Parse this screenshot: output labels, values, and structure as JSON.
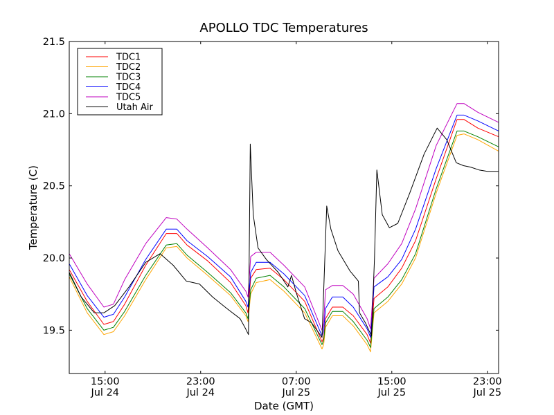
{
  "chart_data": {
    "type": "line",
    "title": "APOLLO TDC Temperatures",
    "xlabel": "Date (GMT)",
    "ylabel": "Temperature (C)",
    "x_unit": "hours since Jul 24 00:00 GMT",
    "xlim": [
      12.0,
      47.94
    ],
    "ylim": [
      19.2,
      21.5
    ],
    "grid": false,
    "legend_position": "top-left",
    "x_ticks": [
      {
        "value": 15,
        "label_time": "15:00",
        "label_date": "Jul 24"
      },
      {
        "value": 23,
        "label_time": "23:00",
        "label_date": "Jul 24"
      },
      {
        "value": 31,
        "label_time": "07:00",
        "label_date": "Jul 25"
      },
      {
        "value": 39,
        "label_time": "15:00",
        "label_date": "Jul 25"
      },
      {
        "value": 47,
        "label_time": "23:00",
        "label_date": "Jul 25"
      }
    ],
    "y_ticks": [
      {
        "value": 19.5,
        "label": "19.5"
      },
      {
        "value": 20.0,
        "label": "20.0"
      },
      {
        "value": 20.5,
        "label": "20.5"
      },
      {
        "value": 21.0,
        "label": "21.0"
      },
      {
        "value": 21.5,
        "label": "21.5"
      }
    ],
    "series": [
      {
        "name": "TDC1",
        "color": "#ff0000",
        "x": [
          12.0,
          13.5,
          14.9,
          15.7,
          16.64,
          18.4,
          20.12,
          21.0,
          21.86,
          23.59,
          25.5,
          26.78,
          26.96,
          27.19,
          27.65,
          28.81,
          29.97,
          31.71,
          33.16,
          33.3,
          33.45,
          34.03,
          34.9,
          35.77,
          36.93,
          37.22,
          37.51,
          38.67,
          39.83,
          40.99,
          42.72,
          44.46,
          45.04,
          46.2,
          47.94
        ],
        "y": [
          19.92,
          19.7,
          19.54,
          19.56,
          19.68,
          19.95,
          20.17,
          20.17,
          20.09,
          19.98,
          19.83,
          19.67,
          19.62,
          19.86,
          19.92,
          19.93,
          19.85,
          19.7,
          19.42,
          19.45,
          19.58,
          19.66,
          19.66,
          19.6,
          19.47,
          19.41,
          19.72,
          19.8,
          19.93,
          20.12,
          20.55,
          20.96,
          20.96,
          20.9,
          20.84
        ]
      },
      {
        "name": "TDC2",
        "color": "#ffa500",
        "x": [
          12.0,
          13.5,
          14.9,
          15.7,
          16.64,
          18.4,
          20.12,
          21.0,
          21.86,
          23.59,
          25.5,
          26.78,
          26.96,
          27.19,
          27.65,
          28.81,
          29.97,
          31.71,
          33.16,
          33.3,
          33.45,
          34.03,
          34.9,
          35.77,
          36.93,
          37.22,
          37.51,
          38.67,
          39.83,
          40.99,
          42.72,
          44.46,
          45.04,
          46.2,
          47.94
        ],
        "y": [
          19.87,
          19.62,
          19.47,
          19.49,
          19.6,
          19.85,
          20.07,
          20.08,
          20.0,
          19.88,
          19.74,
          19.6,
          19.56,
          19.75,
          19.83,
          19.85,
          19.77,
          19.62,
          19.37,
          19.4,
          19.52,
          19.6,
          19.6,
          19.53,
          19.4,
          19.35,
          19.62,
          19.7,
          19.82,
          20.0,
          20.45,
          20.85,
          20.86,
          20.82,
          20.74
        ]
      },
      {
        "name": "TDC3",
        "color": "#008000",
        "x": [
          12.0,
          13.5,
          14.9,
          15.7,
          16.64,
          18.4,
          20.12,
          21.0,
          21.86,
          23.59,
          25.5,
          26.78,
          26.96,
          27.19,
          27.65,
          28.81,
          29.97,
          31.71,
          33.16,
          33.3,
          33.45,
          34.03,
          34.9,
          35.77,
          36.93,
          37.22,
          37.51,
          38.67,
          39.83,
          40.99,
          42.72,
          44.46,
          45.04,
          46.2,
          47.94
        ],
        "y": [
          19.89,
          19.65,
          19.5,
          19.52,
          19.63,
          19.88,
          20.09,
          20.1,
          20.02,
          19.9,
          19.76,
          19.62,
          19.58,
          19.78,
          19.86,
          19.88,
          19.8,
          19.65,
          19.4,
          19.43,
          19.55,
          19.63,
          19.63,
          19.56,
          19.43,
          19.38,
          19.65,
          19.73,
          19.85,
          20.03,
          20.48,
          20.88,
          20.88,
          20.84,
          20.77
        ]
      },
      {
        "name": "TDC4",
        "color": "#0000ff",
        "x": [
          12.0,
          13.5,
          14.9,
          15.7,
          16.64,
          18.4,
          20.12,
          21.0,
          21.86,
          23.59,
          25.5,
          26.78,
          26.96,
          27.19,
          27.65,
          28.81,
          29.97,
          31.71,
          33.16,
          33.3,
          33.45,
          34.03,
          34.9,
          35.77,
          36.93,
          37.22,
          37.51,
          38.67,
          39.83,
          40.99,
          42.72,
          44.46,
          45.04,
          46.2,
          47.94
        ],
        "y": [
          19.96,
          19.74,
          19.59,
          19.61,
          19.73,
          19.99,
          20.2,
          20.2,
          20.12,
          20.01,
          19.87,
          19.7,
          19.66,
          19.9,
          19.97,
          19.97,
          19.89,
          19.74,
          19.46,
          19.5,
          19.65,
          19.73,
          19.73,
          19.66,
          19.51,
          19.45,
          19.8,
          19.87,
          19.99,
          20.2,
          20.62,
          20.99,
          20.99,
          20.95,
          20.88
        ]
      },
      {
        "name": "TDC5",
        "color": "#bf00bf",
        "x": [
          12.0,
          13.5,
          14.9,
          15.7,
          16.64,
          18.4,
          20.12,
          21.0,
          21.86,
          23.59,
          25.5,
          26.78,
          26.96,
          27.19,
          27.65,
          28.81,
          29.97,
          31.71,
          33.16,
          33.3,
          33.45,
          34.03,
          34.9,
          35.77,
          36.93,
          37.22,
          37.51,
          38.67,
          39.83,
          40.99,
          42.72,
          44.46,
          45.04,
          46.2,
          47.94
        ],
        "y": [
          20.03,
          19.82,
          19.66,
          19.68,
          19.85,
          20.1,
          20.28,
          20.27,
          20.2,
          20.07,
          19.92,
          19.77,
          19.73,
          20.01,
          20.04,
          20.04,
          19.95,
          19.8,
          19.5,
          19.55,
          19.78,
          19.81,
          19.81,
          19.75,
          19.58,
          19.51,
          19.86,
          19.96,
          20.1,
          20.34,
          20.78,
          21.07,
          21.07,
          21.01,
          20.94
        ]
      },
      {
        "name": "Utah Air",
        "color": "#000000",
        "x": [
          12.0,
          13.0,
          14.1,
          14.9,
          15.8,
          17.0,
          18.4,
          19.6,
          20.7,
          21.8,
          22.9,
          24.0,
          25.2,
          26.3,
          26.7,
          27.0,
          27.15,
          27.4,
          27.8,
          28.5,
          29.5,
          30.3,
          30.6,
          31.0,
          31.7,
          32.3,
          33.16,
          33.55,
          33.9,
          34.5,
          35.5,
          36.2,
          36.3,
          36.8,
          37.3,
          37.55,
          37.75,
          38.2,
          38.8,
          39.5,
          40.5,
          41.7,
          42.8,
          43.6,
          44.4,
          45.0,
          45.6,
          46.3,
          47.0,
          47.94
        ],
        "y": [
          19.9,
          19.73,
          19.62,
          19.62,
          19.67,
          19.8,
          19.97,
          20.03,
          19.95,
          19.84,
          19.82,
          19.73,
          19.65,
          19.58,
          19.52,
          19.47,
          20.79,
          20.3,
          20.07,
          19.99,
          19.9,
          19.8,
          19.88,
          19.76,
          19.58,
          19.55,
          19.45,
          20.36,
          20.2,
          20.05,
          19.91,
          19.84,
          19.62,
          19.55,
          19.46,
          20.0,
          20.61,
          20.3,
          20.21,
          20.24,
          20.45,
          20.72,
          20.9,
          20.82,
          20.66,
          20.64,
          20.63,
          20.61,
          20.6,
          20.6
        ]
      }
    ]
  }
}
